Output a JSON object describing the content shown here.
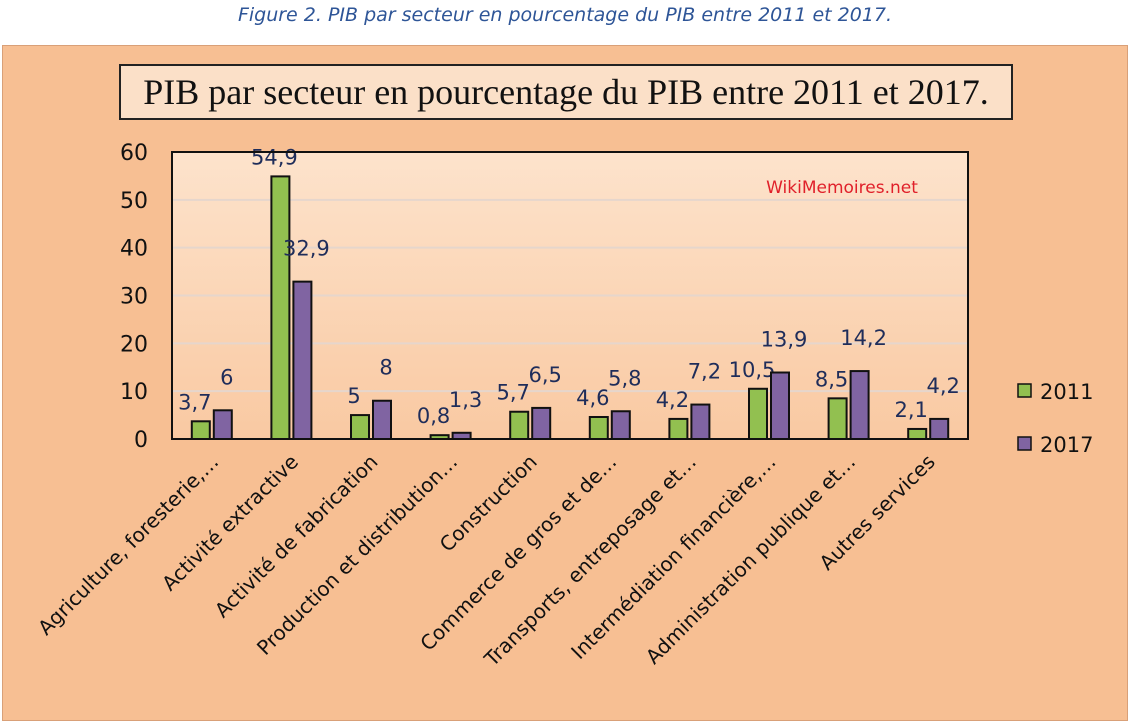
{
  "caption": "Figure 2. PIB par secteur en pourcentage du PIB entre 2011 et 2017.",
  "watermark": "WikiMemoires.net",
  "chart_data": {
    "type": "bar",
    "title": "PIB par secteur en pourcentage du PIB entre 2011 et 2017.",
    "categories": [
      "Agriculture, foresterie,…",
      "Activité extractive",
      "Activité de fabrication",
      "Production et distribution…",
      "Construction",
      "Commerce de gros et de…",
      "Transports, entreposage et…",
      "Intermédiation financière,…",
      "Administration publique et…",
      "Autres services"
    ],
    "series": [
      {
        "name": "2011",
        "color": "#92c050",
        "values": [
          3.7,
          54.9,
          5,
          0.8,
          5.7,
          4.6,
          4.2,
          10.5,
          8.5,
          2.1
        ],
        "labels": [
          "3,7",
          "54,9",
          "5",
          "0,8",
          "5,7",
          "4,6",
          "4,2",
          "10,5",
          "8,5",
          "2,1"
        ]
      },
      {
        "name": "2017",
        "color": "#8064a2",
        "values": [
          6,
          32.9,
          8,
          1.3,
          6.5,
          5.8,
          7.2,
          13.9,
          14.2,
          4.2
        ],
        "labels": [
          "6",
          "32,9",
          "8",
          "1,3",
          "6,5",
          "5,8",
          "7,2",
          "13,9",
          "14,2",
          "4,2"
        ]
      }
    ],
    "yticks": [
      0,
      10,
      20,
      30,
      40,
      50,
      60
    ],
    "ylim": [
      0,
      60
    ],
    "legend": "right",
    "grid": true
  }
}
